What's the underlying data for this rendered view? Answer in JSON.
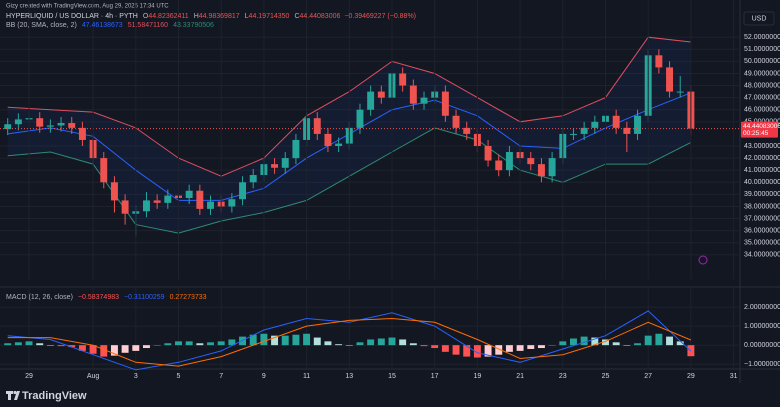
{
  "header": "Gizy created with TradingView.com, Aug 29, 2025 17:34 UTC",
  "currency": "USD",
  "price_label": "44.44083006",
  "countdown": "00:25:45",
  "footer": "TradingView",
  "chart_data": [
    {
      "type": "candlestick",
      "symbol": "HYPERLIQUID / US DOLLAR · 4h · PYTH",
      "ohlc": [
        {
          "label": "O",
          "value": "44.82362411"
        },
        {
          "label": "H",
          "value": "44.98369817"
        },
        {
          "label": "L",
          "value": "44.19714350"
        },
        {
          "label": "C",
          "value": "44.44083006"
        }
      ],
      "change": "−0.39469227 (−0.88%)",
      "indicator": "BB (20, SMA, close, 2)",
      "indicator_values": [
        "47.46138673",
        "51.58471160",
        "43.33790506"
      ],
      "up_color": "#26a69a",
      "down_color": "#ef5350",
      "x": [
        -3,
        -2.5,
        -2,
        -1.5,
        -1,
        -0.5,
        0,
        0.5,
        1,
        1.5,
        2,
        2.5,
        3,
        3.5,
        4,
        4.5,
        5,
        5.5,
        6,
        6.5,
        7,
        7.5,
        8,
        8.5,
        9,
        9.5,
        10,
        10.5,
        11,
        11.5,
        12,
        12.5,
        13,
        13.5,
        14,
        14.5,
        15,
        15.5,
        16,
        16.5,
        17,
        17.5,
        18,
        18.5,
        19,
        19.5,
        20,
        20.5,
        21,
        21.5,
        22,
        22.5,
        23,
        23.5,
        24,
        24.5,
        25,
        25.5,
        26,
        26.5,
        27,
        27.5,
        28,
        28.5,
        29
      ],
      "open": [
        44.4,
        44.8,
        45.2,
        45.3,
        44.6,
        44.7,
        44.9,
        44.5,
        43.5,
        42.0,
        40.0,
        38.5,
        37.4,
        37.6,
        38.5,
        38.3,
        38.9,
        38.7,
        39.3,
        37.8,
        38.4,
        38.0,
        38.6,
        40.0,
        40.6,
        41.5,
        41.2,
        42.0,
        43.5,
        45.3,
        44.0,
        43.0,
        43.2,
        44.5,
        46.0,
        47.5,
        47.0,
        49.0,
        48.0,
        46.5,
        47.0,
        47.5,
        45.5,
        44.5,
        44.0,
        43.0,
        41.8,
        41.0,
        42.5,
        42.0,
        41.5,
        40.5,
        42.0,
        44.0,
        44.0,
        44.5,
        45.0,
        45.5,
        44.5,
        44.0,
        45.5,
        50.5,
        49.5,
        47.5,
        47.5
      ],
      "high": [
        45.3,
        45.7,
        45.8,
        45.8,
        45.2,
        45.4,
        45.4,
        45.0,
        44.0,
        42.5,
        40.5,
        39.0,
        38.1,
        39.2,
        39.0,
        39.4,
        39.4,
        39.8,
        39.8,
        38.9,
        38.9,
        39.1,
        40.5,
        41.1,
        42.0,
        42.0,
        42.5,
        44.0,
        45.8,
        45.8,
        44.5,
        43.7,
        45.0,
        46.5,
        48.0,
        48.0,
        49.5,
        49.5,
        48.5,
        47.5,
        48.0,
        48.0,
        46.0,
        45.0,
        44.5,
        43.5,
        42.3,
        43.0,
        43.0,
        42.5,
        42.0,
        42.5,
        44.5,
        44.5,
        45.0,
        45.5,
        46.0,
        46.0,
        45.0,
        46.0,
        51.0,
        51.0,
        50.0,
        48.8,
        48.0
      ],
      "low": [
        43.9,
        44.3,
        44.7,
        44.1,
        44.1,
        44.2,
        44.0,
        43.0,
        41.5,
        39.5,
        37.5,
        36.5,
        35.6,
        37.1,
        37.8,
        37.8,
        38.2,
        38.2,
        37.3,
        37.3,
        37.5,
        37.5,
        38.1,
        39.5,
        40.1,
        40.7,
        40.7,
        41.5,
        43.0,
        43.5,
        42.5,
        42.5,
        42.7,
        44.0,
        45.5,
        46.5,
        46.5,
        47.5,
        46.0,
        46.0,
        46.5,
        45.0,
        44.0,
        43.5,
        42.5,
        41.3,
        40.5,
        40.5,
        41.5,
        41.0,
        40.0,
        40.0,
        41.5,
        43.5,
        43.5,
        44.0,
        44.5,
        44.0,
        42.5,
        43.5,
        45.0,
        49.0,
        47.0,
        47.0,
        43.9
      ],
      "close": [
        44.8,
        45.2,
        45.3,
        44.6,
        44.7,
        44.9,
        44.5,
        43.5,
        42.0,
        40.0,
        38.5,
        37.4,
        37.6,
        38.5,
        38.3,
        38.9,
        38.7,
        39.3,
        37.8,
        38.4,
        38.0,
        38.6,
        40.0,
        40.6,
        41.5,
        41.2,
        42.0,
        43.5,
        45.3,
        44.0,
        43.0,
        43.2,
        44.5,
        46.0,
        47.5,
        47.0,
        49.0,
        48.0,
        46.5,
        47.0,
        47.5,
        45.5,
        44.5,
        44.0,
        43.0,
        41.8,
        41.0,
        42.5,
        42.0,
        41.5,
        40.5,
        42.0,
        44.0,
        44.0,
        44.5,
        45.0,
        45.5,
        44.5,
        44.0,
        45.5,
        50.5,
        49.5,
        47.5,
        47.5,
        44.44
      ],
      "series": [
        {
          "color": "#2962ff",
          "x": [
            -3,
            -1,
            1,
            3,
            5,
            7,
            9,
            11,
            13,
            15,
            17,
            19,
            21,
            23,
            25,
            27,
            29
          ],
          "values": [
            44.0,
            44.5,
            43.8,
            41.0,
            38.5,
            38.5,
            39.5,
            42.0,
            44.0,
            46.0,
            46.8,
            45.5,
            43.0,
            42.8,
            44.5,
            46.0,
            47.4
          ]
        },
        {
          "color": "#e04f5f",
          "x": [
            -3,
            -1,
            1,
            3,
            5,
            7,
            9,
            11,
            13,
            15,
            17,
            19,
            21,
            23,
            25,
            27,
            29
          ],
          "values": [
            46.2,
            46.0,
            45.8,
            44.5,
            42.0,
            40.5,
            42.0,
            45.5,
            47.5,
            50.0,
            49.0,
            47.0,
            45.0,
            45.5,
            47.0,
            52.0,
            51.6
          ]
        },
        {
          "color": "#2e8b72",
          "x": [
            -3,
            -1,
            1,
            3,
            5,
            7,
            9,
            11,
            13,
            15,
            17,
            19,
            21,
            23,
            25,
            27,
            29
          ],
          "values": [
            42.2,
            42.5,
            41.5,
            36.5,
            35.8,
            36.8,
            37.5,
            38.5,
            40.5,
            42.5,
            44.5,
            43.5,
            41.0,
            40.0,
            41.5,
            41.5,
            43.3
          ]
        }
      ],
      "xlim": [
        -3.36,
        31.3
      ],
      "ylim": [
        32,
        54
      ],
      "yticks": [
        {
          "value": 34,
          "label": "34.00000000"
        },
        {
          "value": 35,
          "label": "35.00000000"
        },
        {
          "value": 36,
          "label": "36.00000000"
        },
        {
          "value": 37,
          "label": "37.00000000"
        },
        {
          "value": 38,
          "label": "38.00000000"
        },
        {
          "value": 39,
          "label": "39.00000000"
        },
        {
          "value": 40,
          "label": "40.00000000"
        },
        {
          "value": 41,
          "label": "41.00000000"
        },
        {
          "value": 42,
          "label": "42.00000000"
        },
        {
          "value": 43,
          "label": "43.00000000"
        },
        {
          "value": 45,
          "label": "45.00000000"
        },
        {
          "value": 46,
          "label": "46.00000000"
        },
        {
          "value": 47,
          "label": "47.00000000"
        },
        {
          "value": 48,
          "label": "48.00000000"
        },
        {
          "value": 49,
          "label": "49.00000000"
        },
        {
          "value": 50,
          "label": "50.00000000"
        },
        {
          "value": 51,
          "label": "51.00000000"
        },
        {
          "value": 52,
          "label": "52.00000000"
        }
      ],
      "grid": true
    },
    {
      "type": "macd",
      "indicator": "MACD (12, 26, close)",
      "indicator_values": [
        "−0.58374983",
        "−0.31100259",
        "0.27273733"
      ],
      "x": [
        -3,
        -2.5,
        -2,
        -1.5,
        -1,
        -0.5,
        0,
        0.5,
        1,
        1.5,
        2,
        2.5,
        3,
        3.5,
        4,
        4.5,
        5,
        5.5,
        6,
        6.5,
        7,
        7.5,
        8,
        8.5,
        9,
        9.5,
        10,
        10.5,
        11,
        11.5,
        12,
        12.5,
        13,
        13.5,
        14,
        14.5,
        15,
        15.5,
        16,
        16.5,
        17,
        17.5,
        18,
        18.5,
        19,
        19.5,
        20,
        20.5,
        21,
        21.5,
        22,
        22.5,
        23,
        23.5,
        24,
        24.5,
        25,
        25.5,
        26,
        26.5,
        27,
        27.5,
        28,
        28.5,
        29
      ],
      "histogram": [
        0.1,
        0.15,
        0.2,
        0.1,
        0.0,
        -0.05,
        -0.1,
        -0.3,
        -0.45,
        -0.6,
        -0.55,
        -0.4,
        -0.3,
        -0.15,
        0.0,
        0.1,
        0.2,
        0.2,
        0.1,
        0.15,
        0.2,
        0.3,
        0.45,
        0.55,
        0.6,
        0.5,
        0.5,
        0.55,
        0.6,
        0.4,
        0.2,
        0.05,
        0.0,
        0.15,
        0.3,
        0.35,
        0.4,
        0.3,
        0.1,
        -0.05,
        -0.15,
        -0.35,
        -0.5,
        -0.6,
        -0.65,
        -0.6,
        -0.5,
        -0.35,
        -0.3,
        -0.2,
        -0.15,
        0.0,
        0.2,
        0.35,
        0.45,
        0.4,
        0.3,
        0.15,
        0.0,
        0.1,
        0.5,
        0.6,
        0.45,
        0.2,
        -0.58
      ],
      "up_color": "#26a69a",
      "down_color": "#ff5252",
      "series": [
        {
          "color": "#2962ff",
          "x": [
            -3,
            -1,
            1,
            3,
            5,
            7,
            9,
            11,
            13,
            15,
            17,
            19,
            21,
            23,
            25,
            27,
            29
          ],
          "values": [
            0.5,
            0.3,
            -0.5,
            -1.3,
            -0.9,
            -0.3,
            0.8,
            1.4,
            1.2,
            1.7,
            1.0,
            -0.4,
            -0.9,
            -0.2,
            0.5,
            1.8,
            -0.31
          ]
        },
        {
          "color": "#ff6d00",
          "x": [
            -3,
            -1,
            1,
            3,
            5,
            7,
            9,
            11,
            13,
            15,
            17,
            19,
            21,
            23,
            25,
            27,
            29
          ],
          "values": [
            0.4,
            0.4,
            0.0,
            -0.9,
            -1.1,
            -0.6,
            0.2,
            1.0,
            1.3,
            1.4,
            1.2,
            0.3,
            -0.7,
            -0.5,
            0.2,
            1.2,
            0.27
          ]
        }
      ],
      "xlim": [
        -3.36,
        31.3
      ],
      "ylim": [
        -1.2,
        2.9
      ],
      "yticks": [
        {
          "value": 2,
          "label": "2.00000000"
        },
        {
          "value": 1,
          "label": "1.00000000"
        },
        {
          "value": 0,
          "label": "0.00000000"
        },
        {
          "value": -1,
          "label": "−1.00000000"
        }
      ],
      "xticks": [
        {
          "value": -2,
          "label": "29"
        },
        {
          "value": 1,
          "label": "Aug"
        },
        3,
        5,
        7,
        9,
        11,
        13,
        15,
        17,
        19,
        21,
        23,
        25,
        27,
        29,
        31
      ],
      "grid": true
    }
  ]
}
